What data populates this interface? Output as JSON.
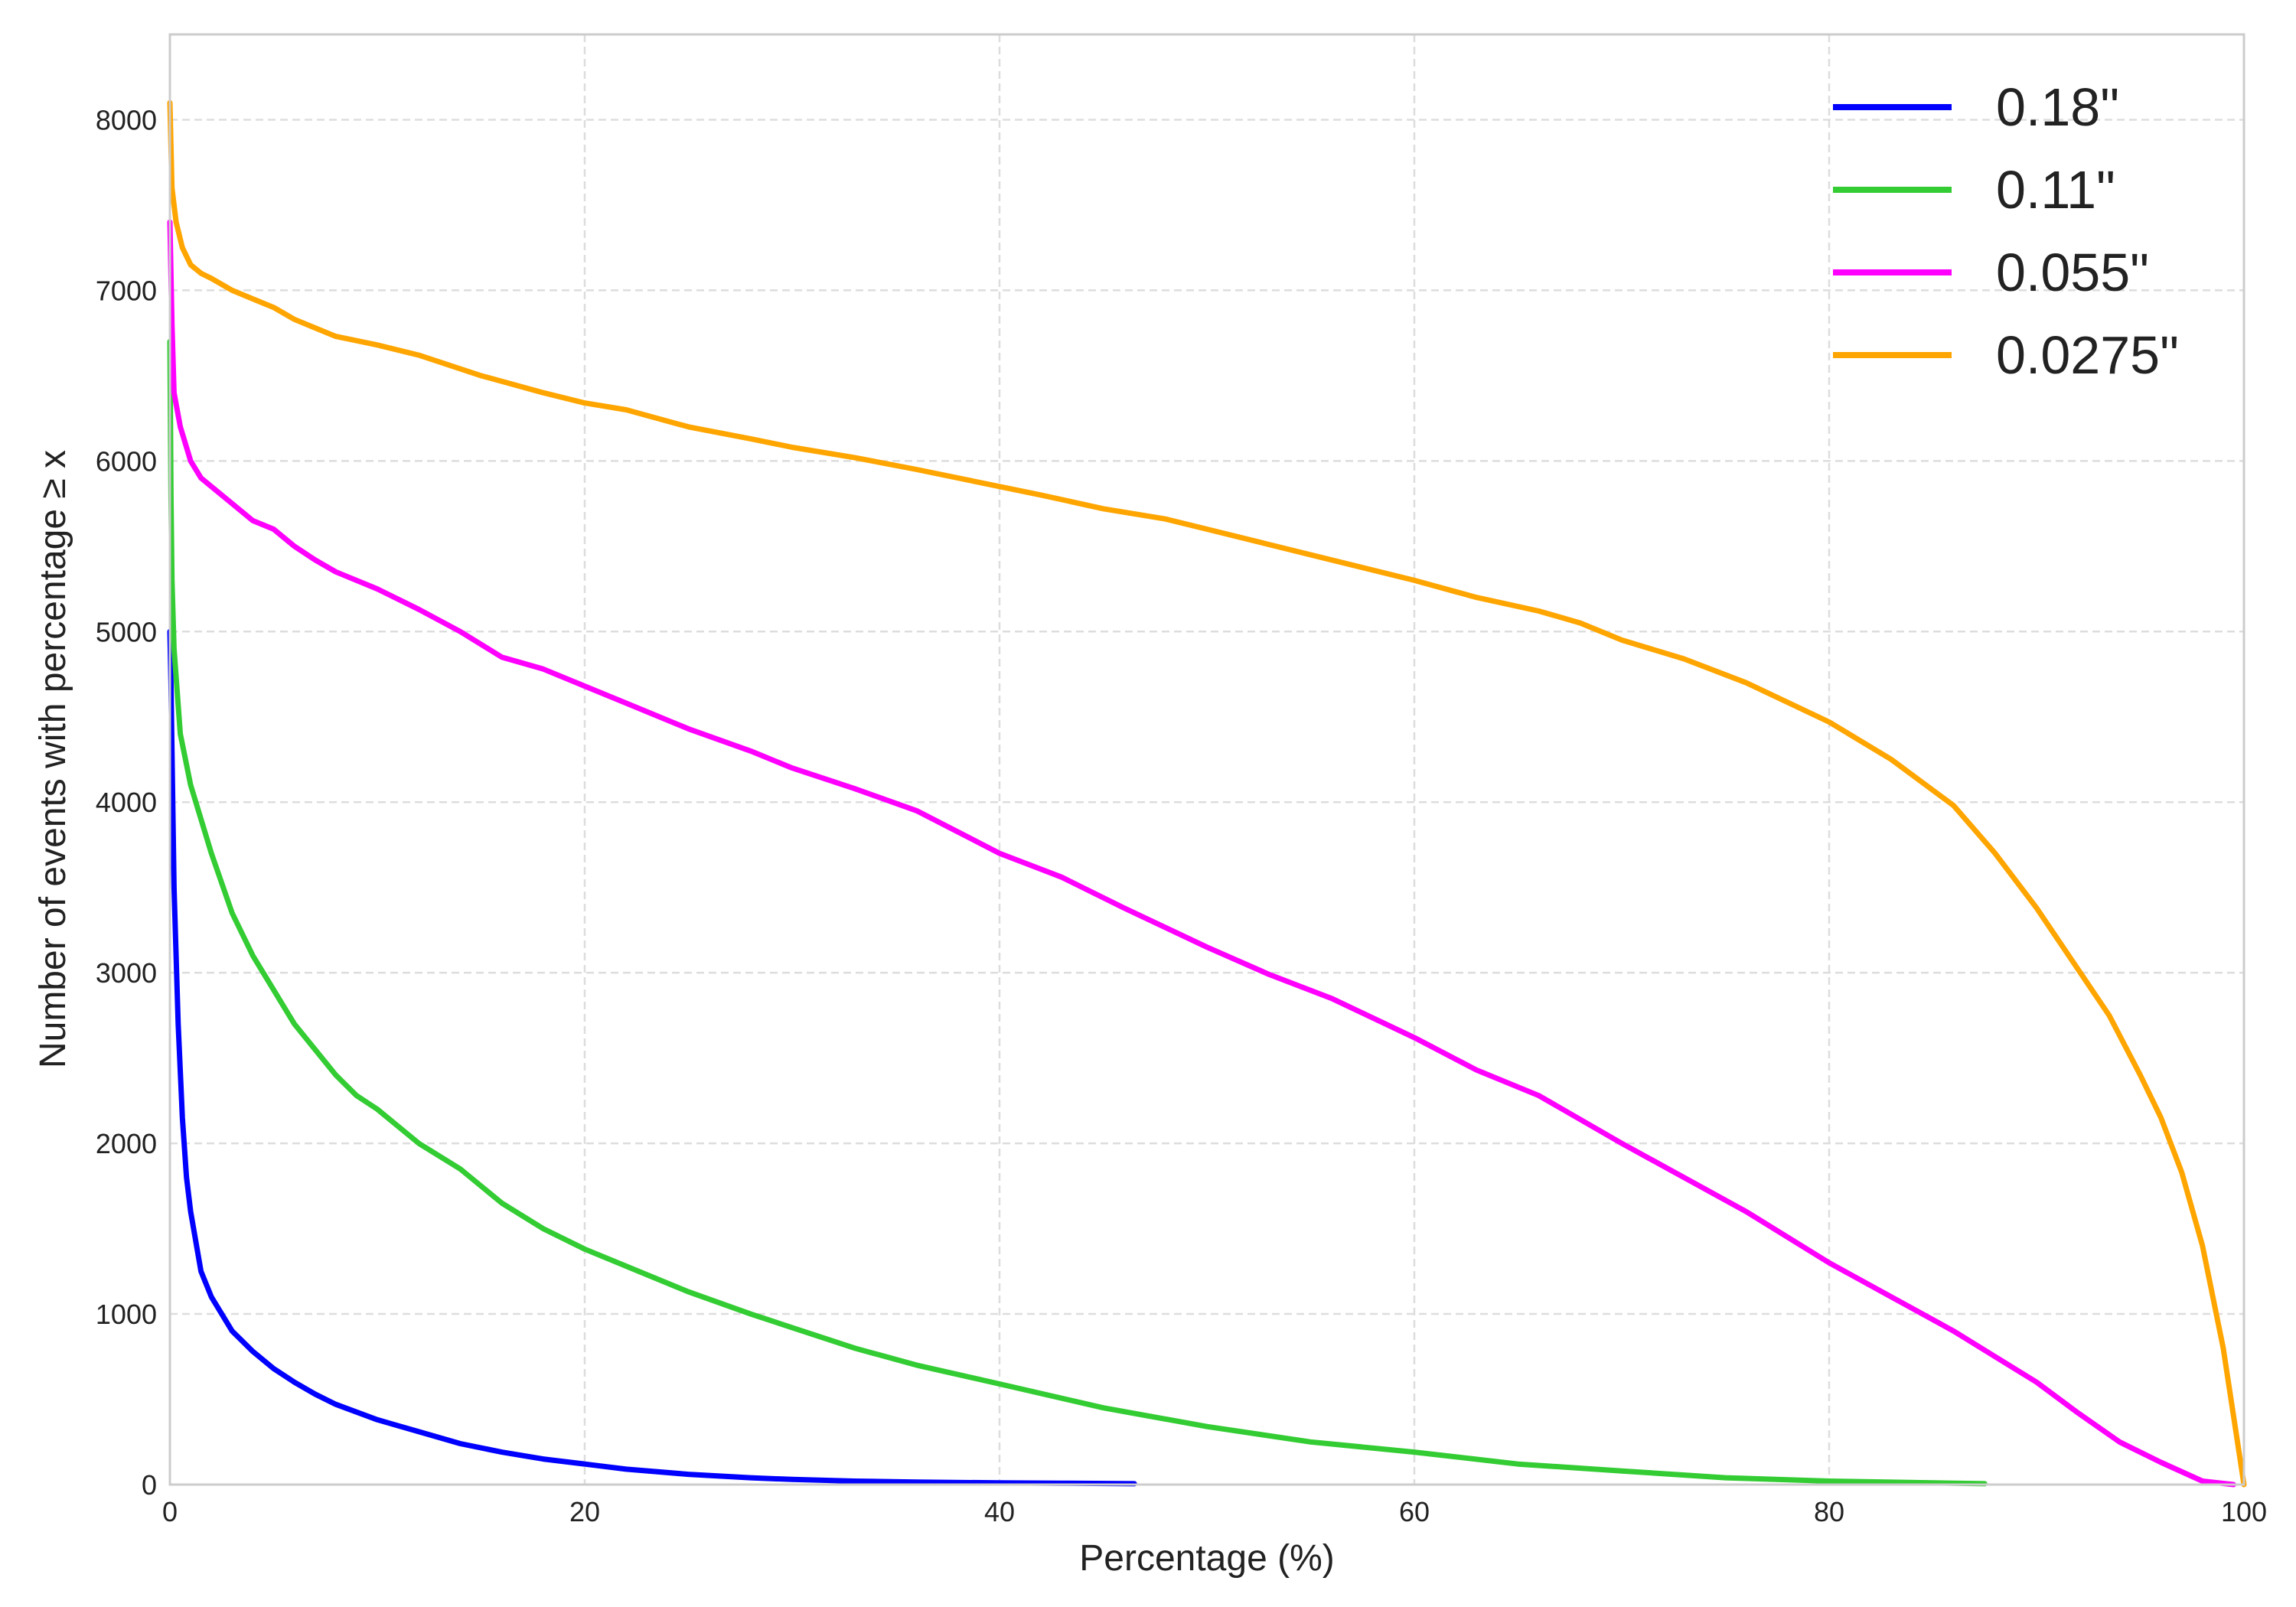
{
  "chart_data": {
    "type": "line",
    "xlabel": "Percentage (%)",
    "ylabel": "Number of events with percentage ≥ x",
    "xlim": [
      0,
      100
    ],
    "ylim": [
      0,
      8500
    ],
    "xticks": [
      0,
      20,
      40,
      60,
      80,
      100
    ],
    "yticks": [
      0,
      1000,
      2000,
      3000,
      4000,
      5000,
      6000,
      7000,
      8000
    ],
    "grid": true,
    "legend_position": "top-right",
    "series": [
      {
        "name": "0.18\"",
        "color": "#0000ff",
        "x": [
          0,
          0.05,
          0.1,
          0.2,
          0.4,
          0.6,
          0.8,
          1.0,
          1.5,
          2,
          3,
          4,
          5,
          6,
          7,
          8,
          10,
          12,
          14,
          16,
          18,
          20,
          22,
          25,
          28,
          30,
          33,
          36,
          40,
          43,
          46.5
        ],
        "y": [
          5000,
          4700,
          4300,
          3500,
          2700,
          2150,
          1800,
          1600,
          1250,
          1100,
          900,
          780,
          680,
          600,
          530,
          470,
          380,
          310,
          240,
          190,
          150,
          120,
          90,
          60,
          40,
          30,
          20,
          15,
          10,
          8,
          5
        ]
      },
      {
        "name": "0.11\"",
        "color": "#33cc33",
        "x": [
          0,
          0.05,
          0.1,
          0.2,
          0.5,
          1,
          2,
          3,
          4,
          5,
          6,
          7,
          8,
          9,
          10,
          11,
          12,
          14,
          16,
          18,
          20,
          22,
          25,
          28,
          30,
          33,
          36,
          40,
          45,
          50,
          55,
          60,
          65,
          70,
          75,
          80,
          85,
          87.5
        ],
        "y": [
          6700,
          5800,
          5300,
          4900,
          4400,
          4100,
          3700,
          3350,
          3100,
          2900,
          2700,
          2550,
          2400,
          2280,
          2200,
          2100,
          2000,
          1850,
          1650,
          1500,
          1380,
          1280,
          1130,
          1000,
          920,
          800,
          700,
          590,
          450,
          340,
          250,
          190,
          120,
          80,
          40,
          20,
          10,
          5
        ]
      },
      {
        "name": "0.055\"",
        "color": "#ff00ff",
        "x": [
          0,
          0.1,
          0.2,
          0.5,
          1,
          1.5,
          2,
          3,
          4,
          5,
          6,
          7,
          8,
          10,
          12,
          14,
          16,
          18,
          20,
          22,
          25,
          28,
          30,
          33,
          36,
          40,
          43,
          46,
          50,
          53,
          56,
          60,
          63,
          66,
          70,
          73,
          76,
          80,
          83,
          86,
          88,
          90,
          92,
          94,
          96,
          98,
          99.5
        ],
        "y": [
          7400,
          6800,
          6400,
          6200,
          6000,
          5900,
          5850,
          5750,
          5650,
          5600,
          5500,
          5420,
          5350,
          5250,
          5130,
          5000,
          4850,
          4780,
          4680,
          4580,
          4430,
          4300,
          4200,
          4080,
          3950,
          3700,
          3560,
          3380,
          3150,
          2990,
          2850,
          2620,
          2430,
          2280,
          2000,
          1800,
          1600,
          1300,
          1100,
          900,
          750,
          600,
          420,
          250,
          130,
          20,
          0
        ]
      },
      {
        "name": "0.0275\"",
        "color": "#ffa500",
        "x": [
          0,
          0.1,
          0.3,
          0.6,
          1,
          1.5,
          2,
          3,
          4,
          5,
          6,
          7,
          8,
          10,
          12,
          15,
          18,
          20,
          22,
          25,
          28,
          30,
          33,
          36,
          40,
          42,
          45,
          48,
          50,
          53,
          56,
          60,
          63,
          66,
          68,
          70,
          73,
          76,
          80,
          83,
          86,
          88,
          90,
          92,
          93.5,
          95,
          96,
          97,
          98,
          99,
          100
        ],
        "y": [
          8100,
          7600,
          7400,
          7250,
          7150,
          7100,
          7070,
          7000,
          6950,
          6900,
          6830,
          6780,
          6730,
          6680,
          6620,
          6500,
          6400,
          6340,
          6300,
          6200,
          6130,
          6080,
          6020,
          5950,
          5850,
          5800,
          5720,
          5660,
          5600,
          5510,
          5420,
          5300,
          5200,
          5120,
          5050,
          4950,
          4840,
          4700,
          4470,
          4250,
          3980,
          3700,
          3380,
          3020,
          2750,
          2400,
          2150,
          1830,
          1400,
          800,
          0
        ]
      }
    ]
  }
}
